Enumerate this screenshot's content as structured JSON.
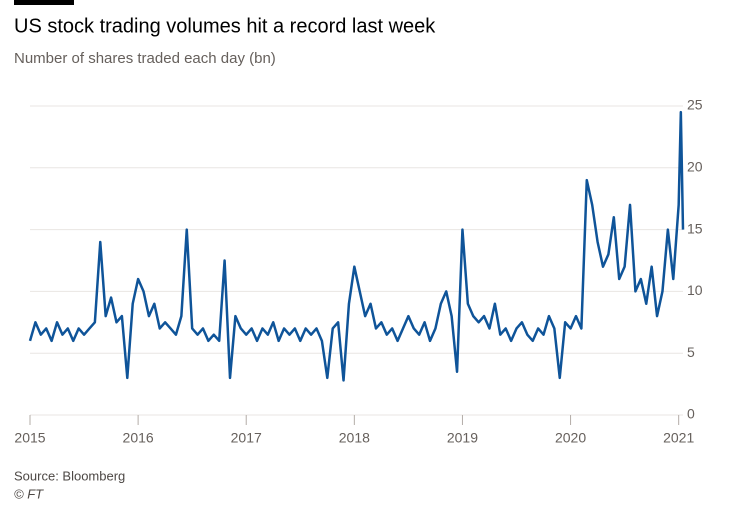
{
  "chart_data": {
    "type": "line",
    "title": "US stock trading volumes hit a record last week",
    "subtitle": "Number of shares traded each day (bn)",
    "source": "Source: Bloomberg",
    "credit": "© FT",
    "x": [
      2015.0,
      2015.05,
      2015.1,
      2015.15,
      2015.2,
      2015.25,
      2015.3,
      2015.35,
      2015.4,
      2015.45,
      2015.5,
      2015.55,
      2015.6,
      2015.65,
      2015.7,
      2015.75,
      2015.8,
      2015.85,
      2015.9,
      2015.95,
      2016.0,
      2016.05,
      2016.1,
      2016.15,
      2016.2,
      2016.25,
      2016.3,
      2016.35,
      2016.4,
      2016.45,
      2016.5,
      2016.55,
      2016.6,
      2016.65,
      2016.7,
      2016.75,
      2016.8,
      2016.85,
      2016.9,
      2016.95,
      2017.0,
      2017.05,
      2017.1,
      2017.15,
      2017.2,
      2017.25,
      2017.3,
      2017.35,
      2017.4,
      2017.45,
      2017.5,
      2017.55,
      2017.6,
      2017.65,
      2017.7,
      2017.75,
      2017.8,
      2017.85,
      2017.9,
      2017.95,
      2018.0,
      2018.05,
      2018.1,
      2018.15,
      2018.2,
      2018.25,
      2018.3,
      2018.35,
      2018.4,
      2018.45,
      2018.5,
      2018.55,
      2018.6,
      2018.65,
      2018.7,
      2018.75,
      2018.8,
      2018.85,
      2018.9,
      2018.95,
      2019.0,
      2019.05,
      2019.1,
      2019.15,
      2019.2,
      2019.25,
      2019.3,
      2019.35,
      2019.4,
      2019.45,
      2019.5,
      2019.55,
      2019.6,
      2019.65,
      2019.7,
      2019.75,
      2019.8,
      2019.85,
      2019.9,
      2019.95,
      2020.0,
      2020.05,
      2020.1,
      2020.15,
      2020.2,
      2020.25,
      2020.3,
      2020.35,
      2020.4,
      2020.45,
      2020.5,
      2020.55,
      2020.6,
      2020.65,
      2020.7,
      2020.75,
      2020.8,
      2020.85,
      2020.9,
      2020.95,
      2021.0,
      2021.02,
      2021.04
    ],
    "series": [
      {
        "name": "Shares traded",
        "color": "#0f5499",
        "values": [
          6,
          7.5,
          6.5,
          7,
          6,
          7.5,
          6.5,
          7,
          6,
          7,
          6.5,
          7,
          7.5,
          14,
          8,
          9.5,
          7.5,
          8,
          3,
          9,
          11,
          10,
          8,
          9,
          7,
          7.5,
          7,
          6.5,
          8,
          15,
          7,
          6.5,
          7,
          6,
          6.5,
          6,
          12.5,
          3,
          8,
          7,
          6.5,
          7,
          6,
          7,
          6.5,
          7.5,
          6,
          7,
          6.5,
          7,
          6,
          7,
          6.5,
          7,
          6,
          3,
          7,
          7.5,
          2.8,
          9,
          12,
          10,
          8,
          9,
          7,
          7.5,
          6.5,
          7,
          6,
          7,
          8,
          7,
          6.5,
          7.5,
          6,
          7,
          9,
          10,
          8,
          3.5,
          15,
          9,
          8,
          7.5,
          8,
          7,
          9,
          6.5,
          7,
          6,
          7,
          7.5,
          6.5,
          6,
          7,
          6.5,
          8,
          7,
          3,
          7.5,
          7,
          8,
          7,
          19,
          17,
          14,
          12,
          13,
          16,
          11,
          12,
          17,
          10,
          11,
          9,
          12,
          8,
          10,
          15,
          11,
          17,
          24.5,
          15
        ]
      }
    ],
    "xlim": [
      2015,
      2021.04
    ],
    "xticks": [
      2015,
      2016,
      2017,
      2018,
      2019,
      2020,
      2021
    ],
    "ylim": [
      0,
      25
    ],
    "yticks": [
      0,
      5,
      10,
      15,
      20,
      25
    ],
    "grid": true
  }
}
